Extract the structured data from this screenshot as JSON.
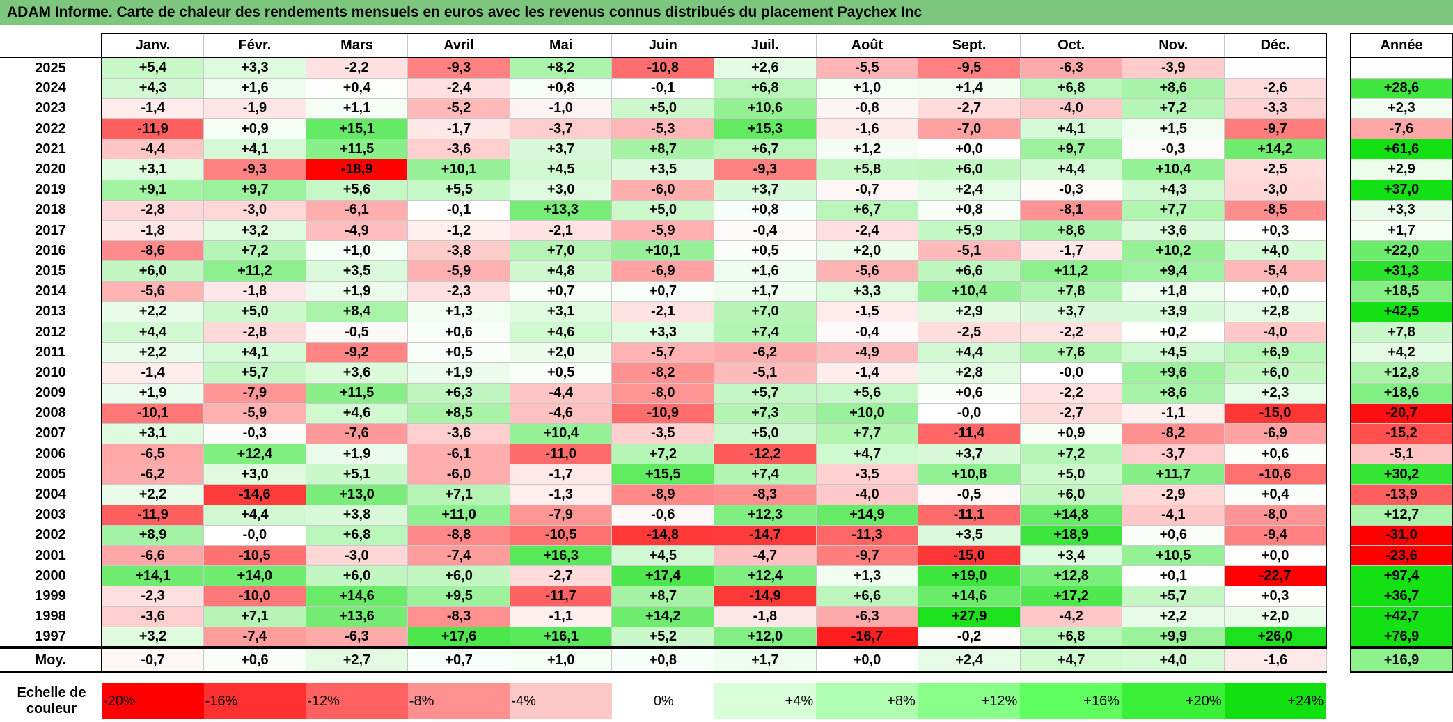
{
  "title": "ADAM Informe. Carte de chaleur des rendements mensuels en euros avec les revenus connus distribués du placement Paychex Inc",
  "chart_data": {
    "type": "heatmap",
    "title": "ADAM Informe. Carte de chaleur des rendements mensuels en euros avec les revenus connus distribués du placement Paychex Inc",
    "months": [
      "Janv.",
      "Févr.",
      "Mars",
      "Avril",
      "Mai",
      "Juin",
      "Juil.",
      "Août",
      "Sept.",
      "Oct.",
      "Nov.",
      "Déc."
    ],
    "year_header": "Année",
    "rows": [
      {
        "year": "2025",
        "values": [
          "+5,4",
          "+3,3",
          "-2,2",
          "-9,3",
          "+8,2",
          "-10,8",
          "+2,6",
          "-5,5",
          "-9,5",
          "-6,3",
          "-3,9",
          ""
        ],
        "annual": ""
      },
      {
        "year": "2024",
        "values": [
          "+4,3",
          "+1,6",
          "+0,4",
          "-2,4",
          "+0,8",
          "-0,1",
          "+6,8",
          "+1,0",
          "+1,4",
          "+6,8",
          "+8,6",
          "-2,6"
        ],
        "annual": "+28,6"
      },
      {
        "year": "2023",
        "values": [
          "-1,4",
          "-1,9",
          "+1,1",
          "-5,2",
          "-1,0",
          "+5,0",
          "+10,6",
          "-0,8",
          "-2,7",
          "-4,0",
          "+7,2",
          "-3,3"
        ],
        "annual": "+2,3"
      },
      {
        "year": "2022",
        "values": [
          "-11,9",
          "+0,9",
          "+15,1",
          "-1,7",
          "-3,7",
          "-5,3",
          "+15,3",
          "-1,6",
          "-7,0",
          "+4,1",
          "+1,5",
          "-9,7"
        ],
        "annual": "-7,6"
      },
      {
        "year": "2021",
        "values": [
          "-4,4",
          "+4,1",
          "+11,5",
          "-3,6",
          "+3,7",
          "+8,7",
          "+6,7",
          "+1,2",
          "+0,0",
          "+9,7",
          "-0,3",
          "+14,2"
        ],
        "annual": "+61,6"
      },
      {
        "year": "2020",
        "values": [
          "+3,1",
          "-9,3",
          "-18,9",
          "+10,1",
          "+4,5",
          "+3,5",
          "-9,3",
          "+5,8",
          "+6,0",
          "+4,4",
          "+10,4",
          "-2,5"
        ],
        "annual": "+2,9"
      },
      {
        "year": "2019",
        "values": [
          "+9,1",
          "+9,7",
          "+5,6",
          "+5,5",
          "+3,0",
          "-6,0",
          "+3,7",
          "-0,7",
          "+2,4",
          "-0,3",
          "+4,3",
          "-3,0"
        ],
        "annual": "+37,0"
      },
      {
        "year": "2018",
        "values": [
          "-2,8",
          "-3,0",
          "-6,1",
          "-0,1",
          "+13,3",
          "+5,0",
          "+0,8",
          "+6,7",
          "+0,8",
          "-8,1",
          "+7,7",
          "-8,5"
        ],
        "annual": "+3,3"
      },
      {
        "year": "2017",
        "values": [
          "-1,8",
          "+3,2",
          "-4,9",
          "-1,2",
          "-2,1",
          "-5,9",
          "-0,4",
          "-2,4",
          "+5,9",
          "+8,6",
          "+3,6",
          "+0,3"
        ],
        "annual": "+1,7"
      },
      {
        "year": "2016",
        "values": [
          "-8,6",
          "+7,2",
          "+1,0",
          "-3,8",
          "+7,0",
          "+10,1",
          "+0,5",
          "+2,0",
          "-5,1",
          "-1,7",
          "+10,2",
          "+4,0"
        ],
        "annual": "+22,0"
      },
      {
        "year": "2015",
        "values": [
          "+6,0",
          "+11,2",
          "+3,5",
          "-5,9",
          "+4,8",
          "-6,9",
          "+1,6",
          "-5,6",
          "+6,6",
          "+11,2",
          "+9,4",
          "-5,4"
        ],
        "annual": "+31,3"
      },
      {
        "year": "2014",
        "values": [
          "-5,6",
          "-1,8",
          "+1,9",
          "-2,3",
          "+0,7",
          "+0,7",
          "+1,7",
          "+3,3",
          "+10,4",
          "+7,8",
          "+1,8",
          "+0,0"
        ],
        "annual": "+18,5"
      },
      {
        "year": "2013",
        "values": [
          "+2,2",
          "+5,0",
          "+8,4",
          "+1,3",
          "+3,1",
          "-2,1",
          "+7,0",
          "-1,5",
          "+2,9",
          "+3,7",
          "+3,9",
          "+2,8"
        ],
        "annual": "+42,5"
      },
      {
        "year": "2012",
        "values": [
          "+4,4",
          "-2,8",
          "-0,5",
          "+0,6",
          "+4,6",
          "+3,3",
          "+7,4",
          "-0,4",
          "-2,5",
          "-2,2",
          "+0,2",
          "-4,0"
        ],
        "annual": "+7,8"
      },
      {
        "year": "2011",
        "values": [
          "+2,2",
          "+4,1",
          "-9,2",
          "+0,5",
          "+2,0",
          "-5,7",
          "-6,2",
          "-4,9",
          "+4,4",
          "+7,6",
          "+4,5",
          "+6,9"
        ],
        "annual": "+4,2"
      },
      {
        "year": "2010",
        "values": [
          "-1,4",
          "+5,7",
          "+3,6",
          "+1,9",
          "+0,5",
          "-8,2",
          "-5,1",
          "-1,4",
          "+2,8",
          "-0,0",
          "+9,6",
          "+6,0"
        ],
        "annual": "+12,8"
      },
      {
        "year": "2009",
        "values": [
          "+1,9",
          "-7,9",
          "+11,5",
          "+6,3",
          "-4,4",
          "-8,0",
          "+5,7",
          "+5,6",
          "+0,6",
          "-2,2",
          "+8,6",
          "+2,3"
        ],
        "annual": "+18,6"
      },
      {
        "year": "2008",
        "values": [
          "-10,1",
          "-5,9",
          "+4,6",
          "+8,5",
          "-4,6",
          "-10,9",
          "+7,3",
          "+10,0",
          "-0,0",
          "-2,7",
          "-1,1",
          "-15,0"
        ],
        "annual": "-20,7"
      },
      {
        "year": "2007",
        "values": [
          "+3,1",
          "-0,3",
          "-7,6",
          "-3,6",
          "+10,4",
          "-3,5",
          "+5,0",
          "+7,7",
          "-11,4",
          "+0,9",
          "-8,2",
          "-6,9"
        ],
        "annual": "-15,2"
      },
      {
        "year": "2006",
        "values": [
          "-6,5",
          "+12,4",
          "+1,9",
          "-6,1",
          "-11,0",
          "+7,2",
          "-12,2",
          "+4,7",
          "+3,7",
          "+7,2",
          "-3,7",
          "+0,6"
        ],
        "annual": "-5,1"
      },
      {
        "year": "2005",
        "values": [
          "-6,2",
          "+3,0",
          "+5,1",
          "-6,0",
          "-1,7",
          "+15,5",
          "+7,4",
          "-3,5",
          "+10,8",
          "+5,0",
          "+11,7",
          "-10,6"
        ],
        "annual": "+30,2"
      },
      {
        "year": "2004",
        "values": [
          "+2,2",
          "-14,6",
          "+13,0",
          "+7,1",
          "-1,3",
          "-8,9",
          "-8,3",
          "-4,0",
          "-0,5",
          "+6,0",
          "-2,9",
          "+0,4"
        ],
        "annual": "-13,9"
      },
      {
        "year": "2003",
        "values": [
          "-11,9",
          "+4,4",
          "+3,8",
          "+11,0",
          "-7,9",
          "-0,6",
          "+12,3",
          "+14,9",
          "-11,1",
          "+14,8",
          "-4,1",
          "-8,0"
        ],
        "annual": "+12,7"
      },
      {
        "year": "2002",
        "values": [
          "+8,9",
          "-0,0",
          "+6,8",
          "-8,8",
          "-10,5",
          "-14,8",
          "-14,7",
          "-11,3",
          "+3,5",
          "+18,9",
          "+0,6",
          "-9,4"
        ],
        "annual": "-31,0"
      },
      {
        "year": "2001",
        "values": [
          "-6,6",
          "-10,5",
          "-3,0",
          "-7,4",
          "+16,3",
          "+4,5",
          "-4,7",
          "-9,7",
          "-15,0",
          "+3,4",
          "+10,5",
          "+0,0"
        ],
        "annual": "-23,6"
      },
      {
        "year": "2000",
        "values": [
          "+14,1",
          "+14,0",
          "+6,0",
          "+6,0",
          "-2,7",
          "+17,4",
          "+12,4",
          "+1,3",
          "+19,0",
          "+12,8",
          "+0,1",
          "-22,7"
        ],
        "annual": "+97,4"
      },
      {
        "year": "1999",
        "values": [
          "-2,3",
          "-10,0",
          "+14,6",
          "+9,5",
          "-11,7",
          "+8,7",
          "-14,9",
          "+6,6",
          "+14,6",
          "+17,2",
          "+5,7",
          "+0,3"
        ],
        "annual": "+36,7"
      },
      {
        "year": "1998",
        "values": [
          "-3,6",
          "+7,1",
          "+13,6",
          "-8,3",
          "-1,1",
          "+14,2",
          "-1,8",
          "-6,3",
          "+27,9",
          "-4,2",
          "+2,2",
          "+2,0"
        ],
        "annual": "+42,7"
      },
      {
        "year": "1997",
        "values": [
          "+3,2",
          "-7,4",
          "-6,3",
          "+17,6",
          "+16,1",
          "+5,2",
          "+12,0",
          "-16,7",
          "-0,2",
          "+6,8",
          "+9,9",
          "+26,0"
        ],
        "annual": "+76,9"
      }
    ],
    "average": {
      "label": "Moy.",
      "values": [
        "-0,7",
        "+0,6",
        "+2,7",
        "+0,7",
        "+1,0",
        "+0,8",
        "+1,7",
        "+0,0",
        "+2,4",
        "+4,7",
        "+4,0",
        "-1,6"
      ],
      "annual": "+16,9"
    },
    "scale": {
      "label": "Echelle de couleur",
      "stops": [
        "-20%",
        "-16%",
        "-12%",
        "-8%",
        "-4%",
        "0%",
        "+4%",
        "+8%",
        "+12%",
        "+16%",
        "+20%",
        "+24%"
      ],
      "colors": [
        "#ff0000",
        "#ff3030",
        "#ff6060",
        "#ff9090",
        "#ffc8c8",
        "#ffffff",
        "#d8ffd8",
        "#b0ffb0",
        "#88ff88",
        "#60ff60",
        "#38f038",
        "#10e010"
      ]
    }
  }
}
